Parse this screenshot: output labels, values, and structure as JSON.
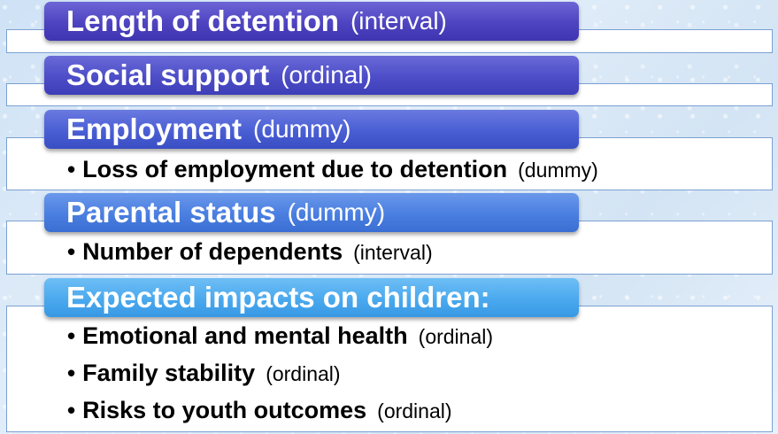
{
  "sections": [
    {
      "title": "Length of detention",
      "tag": "(interval)"
    },
    {
      "title": "Social support",
      "tag": "(ordinal)"
    },
    {
      "title": "Employment",
      "tag": "(dummy)",
      "bullets": [
        {
          "text": "Loss of employment due to detention",
          "tag": "(dummy)"
        }
      ]
    },
    {
      "title": "Parental status",
      "tag": "(dummy)",
      "bullets": [
        {
          "text": "Number of dependents",
          "tag": "(interval)"
        }
      ]
    },
    {
      "title": "Expected impacts on children:",
      "tag": "",
      "bullets": [
        {
          "text": "Emotional and mental health",
          "tag": "(ordinal)"
        },
        {
          "text": "Family stability",
          "tag": "(ordinal)"
        },
        {
          "text": "Risks to youth outcomes",
          "tag": "(ordinal)"
        }
      ]
    }
  ],
  "bullet_char": "•"
}
